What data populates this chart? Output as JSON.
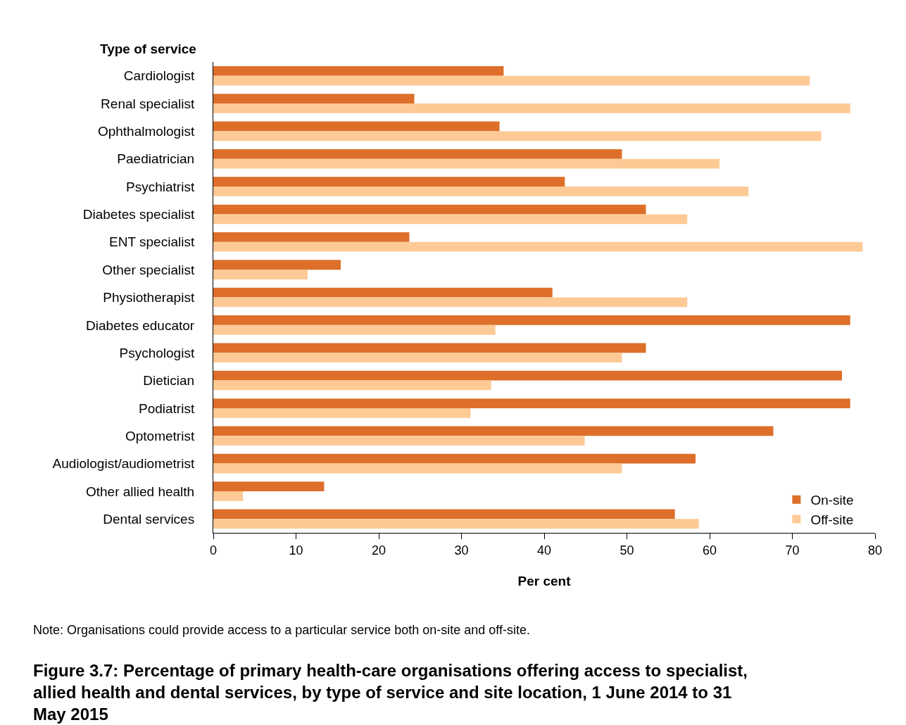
{
  "chart_data": {
    "type": "bar",
    "orientation": "horizontal",
    "title": "Figure 3.7: Percentage of primary health-care organisations offering access to specialist, allied health and dental services, by type of service and site location, 1 June 2014 to 31 May 2015",
    "ylabel": "Type of service",
    "xlabel": "Per cent",
    "categories": [
      "Cardiologist",
      "Renal specialist",
      "Ophthalmologist",
      "Paediatrician",
      "Psychiatrist",
      "Diabetes specialist",
      "ENT specialist",
      "Other specialist",
      "Physiotherapist",
      "Diabetes educator",
      "Psychologist",
      "Dietician",
      "Podiatrist",
      "Optometrist",
      "Audiologist/audiometrist",
      "Other allied health",
      "Dental services"
    ],
    "series": [
      {
        "name": "On-site",
        "color": "#dd6f2a",
        "values": [
          35.1,
          24.3,
          34.6,
          49.4,
          42.5,
          52.3,
          23.7,
          15.4,
          41.0,
          77.0,
          52.3,
          76.0,
          77.0,
          67.7,
          58.3,
          13.4,
          55.8
        ]
      },
      {
        "name": "Off-site",
        "color": "#fdca96",
        "values": [
          72.1,
          77.0,
          73.5,
          61.2,
          64.7,
          57.3,
          78.5,
          11.4,
          57.3,
          34.1,
          49.4,
          33.6,
          31.1,
          44.9,
          49.4,
          3.6,
          58.7
        ]
      }
    ],
    "xlim": [
      0,
      80
    ],
    "xticks": [
      0,
      10,
      20,
      30,
      40,
      50,
      60,
      70,
      80
    ],
    "legend": "bottom right",
    "annotations": [
      "Note: Organisations could provide access to a particular service both on-site and off-site."
    ]
  }
}
